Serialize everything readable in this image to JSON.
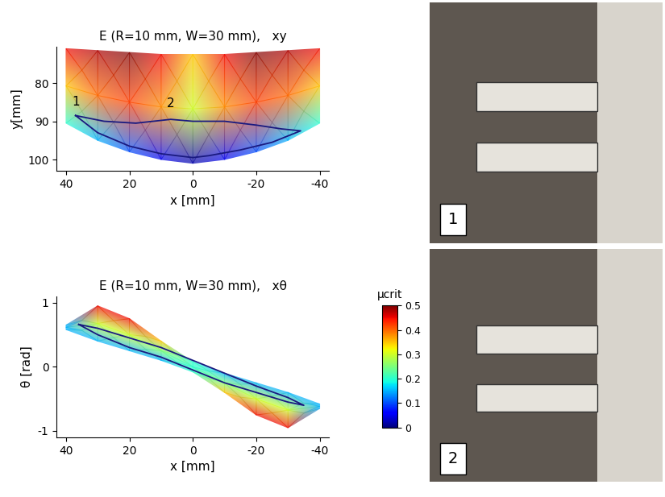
{
  "chart_data": [
    {
      "type": "surface",
      "title": "E (R=10 mm, W=30 mm),   xy",
      "x_label": "x [mm]",
      "y_label": "y[mm]",
      "xlim": [
        43,
        -43
      ],
      "ylim": [
        103,
        70.5
      ],
      "xticks": [
        40,
        20,
        0,
        -20,
        -40
      ],
      "yticks": [
        80,
        90,
        100
      ],
      "surface": {
        "x": [
          40,
          30,
          20,
          10,
          0,
          -10,
          -20,
          -30,
          -40
        ],
        "y_top": [
          71,
          71.5,
          72,
          72.5,
          72.5,
          72.5,
          72,
          71.5,
          71
        ],
        "y_bottom": [
          90.5,
          95,
          98,
          100,
          101,
          100,
          98,
          95,
          90.5
        ],
        "mu_top": [
          0.45,
          0.48,
          0.5,
          0.45,
          0.35,
          0.45,
          0.5,
          0.48,
          0.45
        ],
        "mu_middle": [
          0.35,
          0.4,
          0.42,
          0.38,
          0.3,
          0.38,
          0.42,
          0.4,
          0.35
        ],
        "mu_bottom": [
          0.2,
          0.15,
          0.1,
          0.05,
          0.02,
          0.05,
          0.1,
          0.15,
          0.2
        ]
      },
      "series": [
        {
          "color": "#1a1a80",
          "x": [
            37,
            28,
            18,
            7,
            0,
            -10,
            -20,
            -28,
            -34,
            -25,
            -15,
            -5,
            0,
            10,
            20,
            30,
            37
          ],
          "values": [
            88.5,
            90,
            90.5,
            89.5,
            90,
            90,
            91,
            92,
            92.5,
            95.5,
            97.5,
            99,
            99.5,
            98.5,
            96.5,
            93,
            88.5
          ]
        }
      ],
      "annotations": [
        {
          "text": "1",
          "x": 37,
          "y": 86.5
        },
        {
          "text": "2",
          "x": 7,
          "y": 87
        }
      ]
    },
    {
      "type": "surface",
      "title": "E (R=10 mm, W=30 mm),   xθ",
      "x_label": "x [mm]",
      "y_label": "θ [rad]",
      "xlim": [
        43,
        -43
      ],
      "ylim": [
        -1.1,
        1.1
      ],
      "xticks": [
        40,
        20,
        0,
        -20,
        -40
      ],
      "yticks": [
        -1,
        0,
        1
      ],
      "surface": {
        "x": [
          40,
          30,
          20,
          10,
          0,
          -10,
          -20,
          -30,
          -40
        ],
        "y_top": [
          0.65,
          0.95,
          0.75,
          0.4,
          0.08,
          -0.1,
          -0.25,
          -0.4,
          -0.58
        ],
        "y_bottom": [
          0.58,
          0.4,
          0.25,
          0.1,
          -0.08,
          -0.4,
          -0.75,
          -0.95,
          -0.65
        ],
        "mu_top": [
          0.15,
          0.45,
          0.45,
          0.35,
          0.2,
          0.15,
          0.15,
          0.15,
          0.15
        ],
        "mu_middle": [
          0.15,
          0.3,
          0.3,
          0.25,
          0.2,
          0.25,
          0.3,
          0.3,
          0.15
        ],
        "mu_bottom": [
          0.15,
          0.15,
          0.15,
          0.15,
          0.2,
          0.35,
          0.45,
          0.45,
          0.15
        ]
      },
      "series": [
        {
          "color": "#1a1a80",
          "x": [
            36,
            30,
            20,
            10,
            0,
            -10,
            -20,
            -30,
            -35,
            -30,
            -20,
            -10,
            0,
            10,
            20,
            30,
            36
          ],
          "values": [
            0.66,
            0.6,
            0.45,
            0.3,
            0.1,
            -0.1,
            -0.3,
            -0.48,
            -0.6,
            -0.55,
            -0.4,
            -0.25,
            -0.05,
            0.15,
            0.3,
            0.5,
            0.66
          ]
        }
      ],
      "annotations": []
    }
  ],
  "colorbar": {
    "label": "μcrit",
    "range": [
      0,
      0.5
    ],
    "ticks": [
      0,
      0.1,
      0.2,
      0.3,
      0.4,
      0.5
    ]
  },
  "photos": [
    {
      "label": "1"
    },
    {
      "label": "2"
    }
  ]
}
